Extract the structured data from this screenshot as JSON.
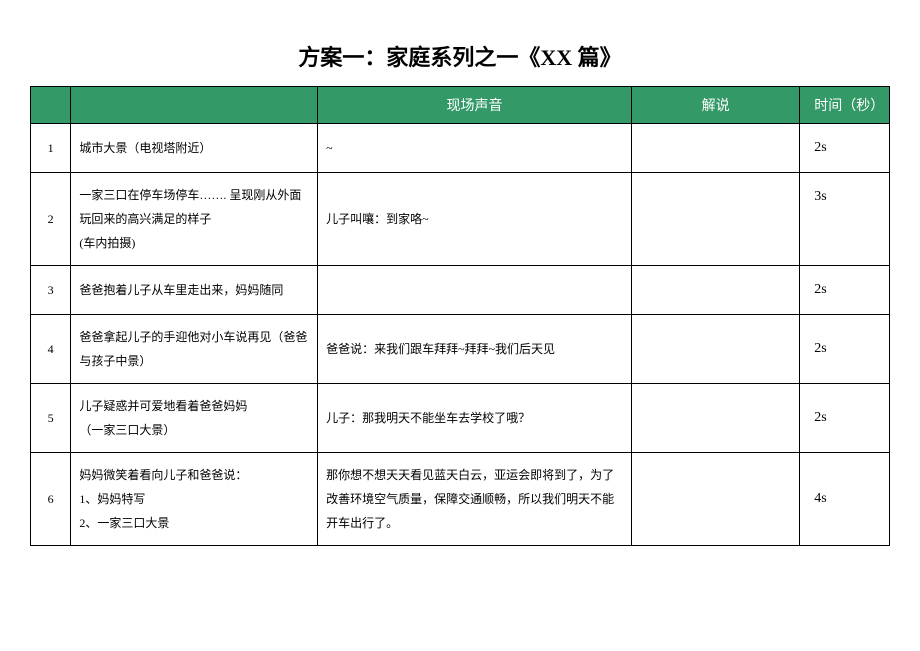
{
  "title": "方案一：家庭系列之一《XX 篇》",
  "header": {
    "col1": "",
    "col2": "",
    "col3": "现场声音",
    "col4": "解说",
    "col5": "时间（秒）"
  },
  "rows": [
    {
      "idx": "1",
      "desc": "城市大景（电视塔附近）",
      "sound": "~",
      "narr": "",
      "time": "2s"
    },
    {
      "idx": "2",
      "desc": "一家三口在停车场停车……. 呈现刚从外面玩回来的高兴满足的样子\n(车内拍摄)",
      "sound": "儿子叫嚷：到家咯~",
      "narr": "",
      "time": "3s"
    },
    {
      "idx": "3",
      "desc": "爸爸抱着儿子从车里走出来，妈妈随同",
      "sound": "",
      "narr": "",
      "time": "2s"
    },
    {
      "idx": "4",
      "desc": "爸爸拿起儿子的手迎他对小车说再见（爸爸与孩子中景）",
      "sound": "爸爸说：来我们跟车拜拜~拜拜~我们后天见",
      "narr": "",
      "time": "2s"
    },
    {
      "idx": "5",
      "desc": "儿子疑惑并可爱地看着爸爸妈妈\n（一家三口大景）",
      "sound": "儿子：那我明天不能坐车去学校了哦？",
      "narr": "",
      "time": "2s"
    },
    {
      "idx": "6",
      "desc": "妈妈微笑着看向儿子和爸爸说：\n1、妈妈特写\n2、一家三口大景",
      "sound": "那你想不想天天看见蓝天白云，亚运会即将到了，为了改善环境空气质量，保障交通顺畅，所以我们明天不能开车出行了。",
      "narr": "",
      "time": "4s"
    }
  ],
  "style": {
    "header_bg": "#339966",
    "header_fg": "#ffffff",
    "border_color": "#000000",
    "title_fontsize": 22,
    "cell_fontsize": 12
  }
}
